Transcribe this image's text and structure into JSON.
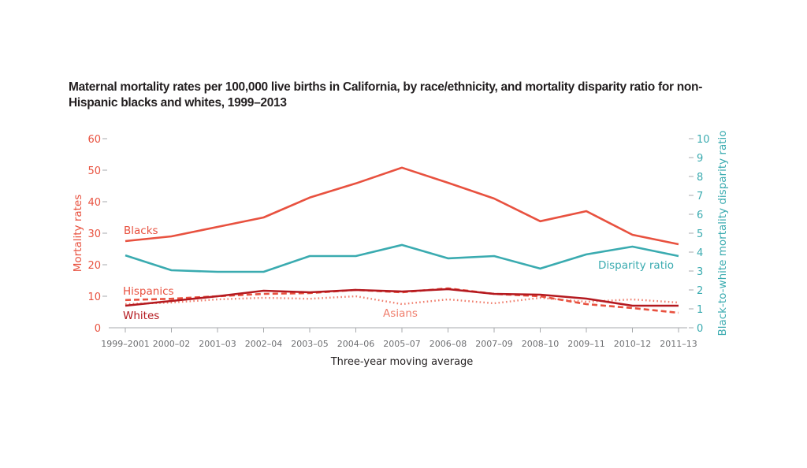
{
  "chart_data": {
    "type": "line",
    "title": "Maternal mortality rates per 100,000 live births in California, by race/ethnicity, and mortality disparity ratio for non-Hispanic blacks and whites, 1999–2013",
    "xlabel": "Three-year moving average",
    "ylabel": "Mortality rates",
    "y2label": "Black-to-white mortality disparity ratio",
    "ylim": [
      0,
      60
    ],
    "y2lim": [
      0,
      10
    ],
    "yticks": [
      0,
      10,
      20,
      30,
      40,
      50,
      60
    ],
    "y2ticks": [
      0,
      1,
      2,
      3,
      4,
      5,
      6,
      7,
      8,
      9,
      10
    ],
    "grid": false,
    "categories": [
      "1999–2001",
      "2000–02",
      "2001–03",
      "2002–04",
      "2003–05",
      "2004–06",
      "2005–07",
      "2006–08",
      "2007–09",
      "2008–10",
      "2009–11",
      "2010–12",
      "2011–13"
    ],
    "series": [
      {
        "name": "Blacks",
        "axis": "left",
        "style": "solid",
        "color": "#e8513f",
        "values": [
          27.5,
          29,
          32,
          35,
          41.3,
          45.8,
          50.8,
          46,
          41,
          33.8,
          37,
          29.5,
          26.5
        ]
      },
      {
        "name": "Whites",
        "axis": "left",
        "style": "solid",
        "color": "#b4191f",
        "values": [
          7,
          8.5,
          10,
          11.75,
          11.25,
          12,
          11.5,
          12.25,
          10.75,
          10.5,
          9.25,
          7,
          7
        ]
      },
      {
        "name": "Hispanics",
        "axis": "left",
        "style": "dashed",
        "color": "#e8513f",
        "values": [
          8.8,
          9.2,
          10,
          10.75,
          11,
          12,
          11.25,
          12.5,
          10.75,
          10,
          7.5,
          6.25,
          4.75
        ]
      },
      {
        "name": "Asians",
        "axis": "left",
        "style": "dotted",
        "color": "#f07f6e",
        "values": [
          7.5,
          8,
          9,
          9.5,
          9.2,
          10,
          7.5,
          9,
          7.75,
          9.5,
          8.25,
          9,
          8
        ]
      },
      {
        "name": "Disparity ratio",
        "axis": "right",
        "style": "solid",
        "color": "#3aabb0",
        "values": [
          3.83,
          3.04,
          2.96,
          2.96,
          3.79,
          3.79,
          4.38,
          3.67,
          3.79,
          3.13,
          3.88,
          4.29,
          3.79
        ]
      }
    ],
    "annotations": [
      {
        "text": "Blacks",
        "series": "Blacks"
      },
      {
        "text": "Hispanics",
        "series": "Hispanics"
      },
      {
        "text": "Whites",
        "series": "Whites"
      },
      {
        "text": "Asians",
        "series": "Asians"
      },
      {
        "text": "Disparity ratio",
        "series": "Disparity ratio"
      }
    ]
  }
}
